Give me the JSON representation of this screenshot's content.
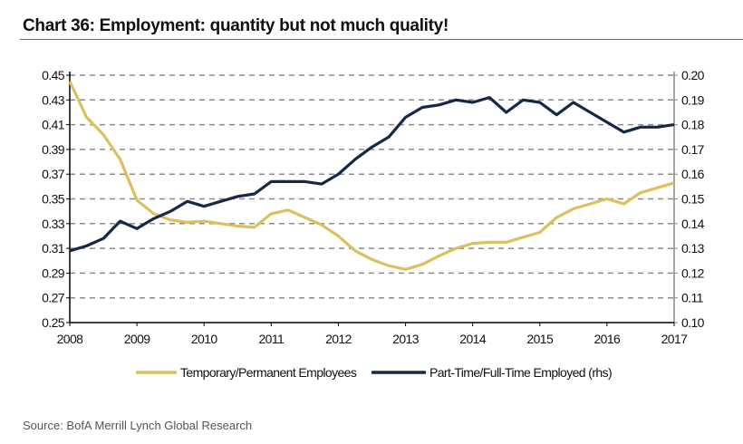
{
  "title": "Chart 36: Employment: quantity but not much quality!",
  "source": "Source: BofA Merrill Lynch Global Research",
  "chart_data": {
    "type": "line",
    "title": "Chart 36: Employment: quantity but not much quality!",
    "xlabel": "",
    "ylabel": "",
    "xlim": [
      2008,
      2017
    ],
    "ylim": [
      0.25,
      0.45
    ],
    "y2lim": [
      0.1,
      0.2
    ],
    "grid": "horizontal dashed",
    "legend_position": "bottom",
    "x_ticks": [
      "2008",
      "2009",
      "2010",
      "2011",
      "2012",
      "2013",
      "2014",
      "2015",
      "2016",
      "2017"
    ],
    "y_ticks": [
      "0.45",
      "0.43",
      "0.41",
      "0.39",
      "0.37",
      "0.35",
      "0.33",
      "0.31",
      "0.29",
      "0.27",
      "0.25"
    ],
    "y2_ticks": [
      "0.20",
      "0.19",
      "0.18",
      "0.17",
      "0.16",
      "0.15",
      "0.14",
      "0.13",
      "0.12",
      "0.11",
      "0.10"
    ],
    "x": [
      2008.0,
      2008.25,
      2008.5,
      2008.75,
      2009.0,
      2009.25,
      2009.5,
      2009.75,
      2010.0,
      2010.25,
      2010.5,
      2010.75,
      2011.0,
      2011.25,
      2011.5,
      2011.75,
      2012.0,
      2012.25,
      2012.5,
      2012.75,
      2013.0,
      2013.25,
      2013.5,
      2013.75,
      2014.0,
      2014.25,
      2014.5,
      2014.75,
      2015.0,
      2015.25,
      2015.5,
      2015.75,
      2016.0,
      2016.25,
      2016.5,
      2016.75,
      2017.0
    ],
    "series": [
      {
        "name": "Temporary/Permanent Employees",
        "axis": "left",
        "color": "#DDBF5E",
        "values": [
          0.445,
          0.416,
          0.402,
          0.382,
          0.349,
          0.338,
          0.333,
          0.331,
          0.332,
          0.33,
          0.328,
          0.327,
          0.338,
          0.341,
          0.335,
          0.329,
          0.32,
          0.308,
          0.301,
          0.296,
          0.293,
          0.297,
          0.304,
          0.31,
          0.314,
          0.315,
          0.315,
          0.319,
          0.323,
          0.335,
          0.342,
          0.346,
          0.35,
          0.346,
          0.355,
          0.359,
          0.363
        ]
      },
      {
        "name": "Part-Time/Full-Time Employed (rhs)",
        "axis": "right",
        "color": "#13284B",
        "values": [
          0.129,
          0.131,
          0.134,
          0.141,
          0.138,
          0.142,
          0.145,
          0.149,
          0.147,
          0.149,
          0.151,
          0.152,
          0.157,
          0.157,
          0.157,
          0.156,
          0.16,
          0.166,
          0.171,
          0.175,
          0.183,
          0.187,
          0.188,
          0.19,
          0.189,
          0.191,
          0.185,
          0.19,
          0.189,
          0.184,
          0.189,
          0.185,
          0.181,
          0.177,
          0.179,
          0.179,
          0.18
        ]
      }
    ]
  }
}
